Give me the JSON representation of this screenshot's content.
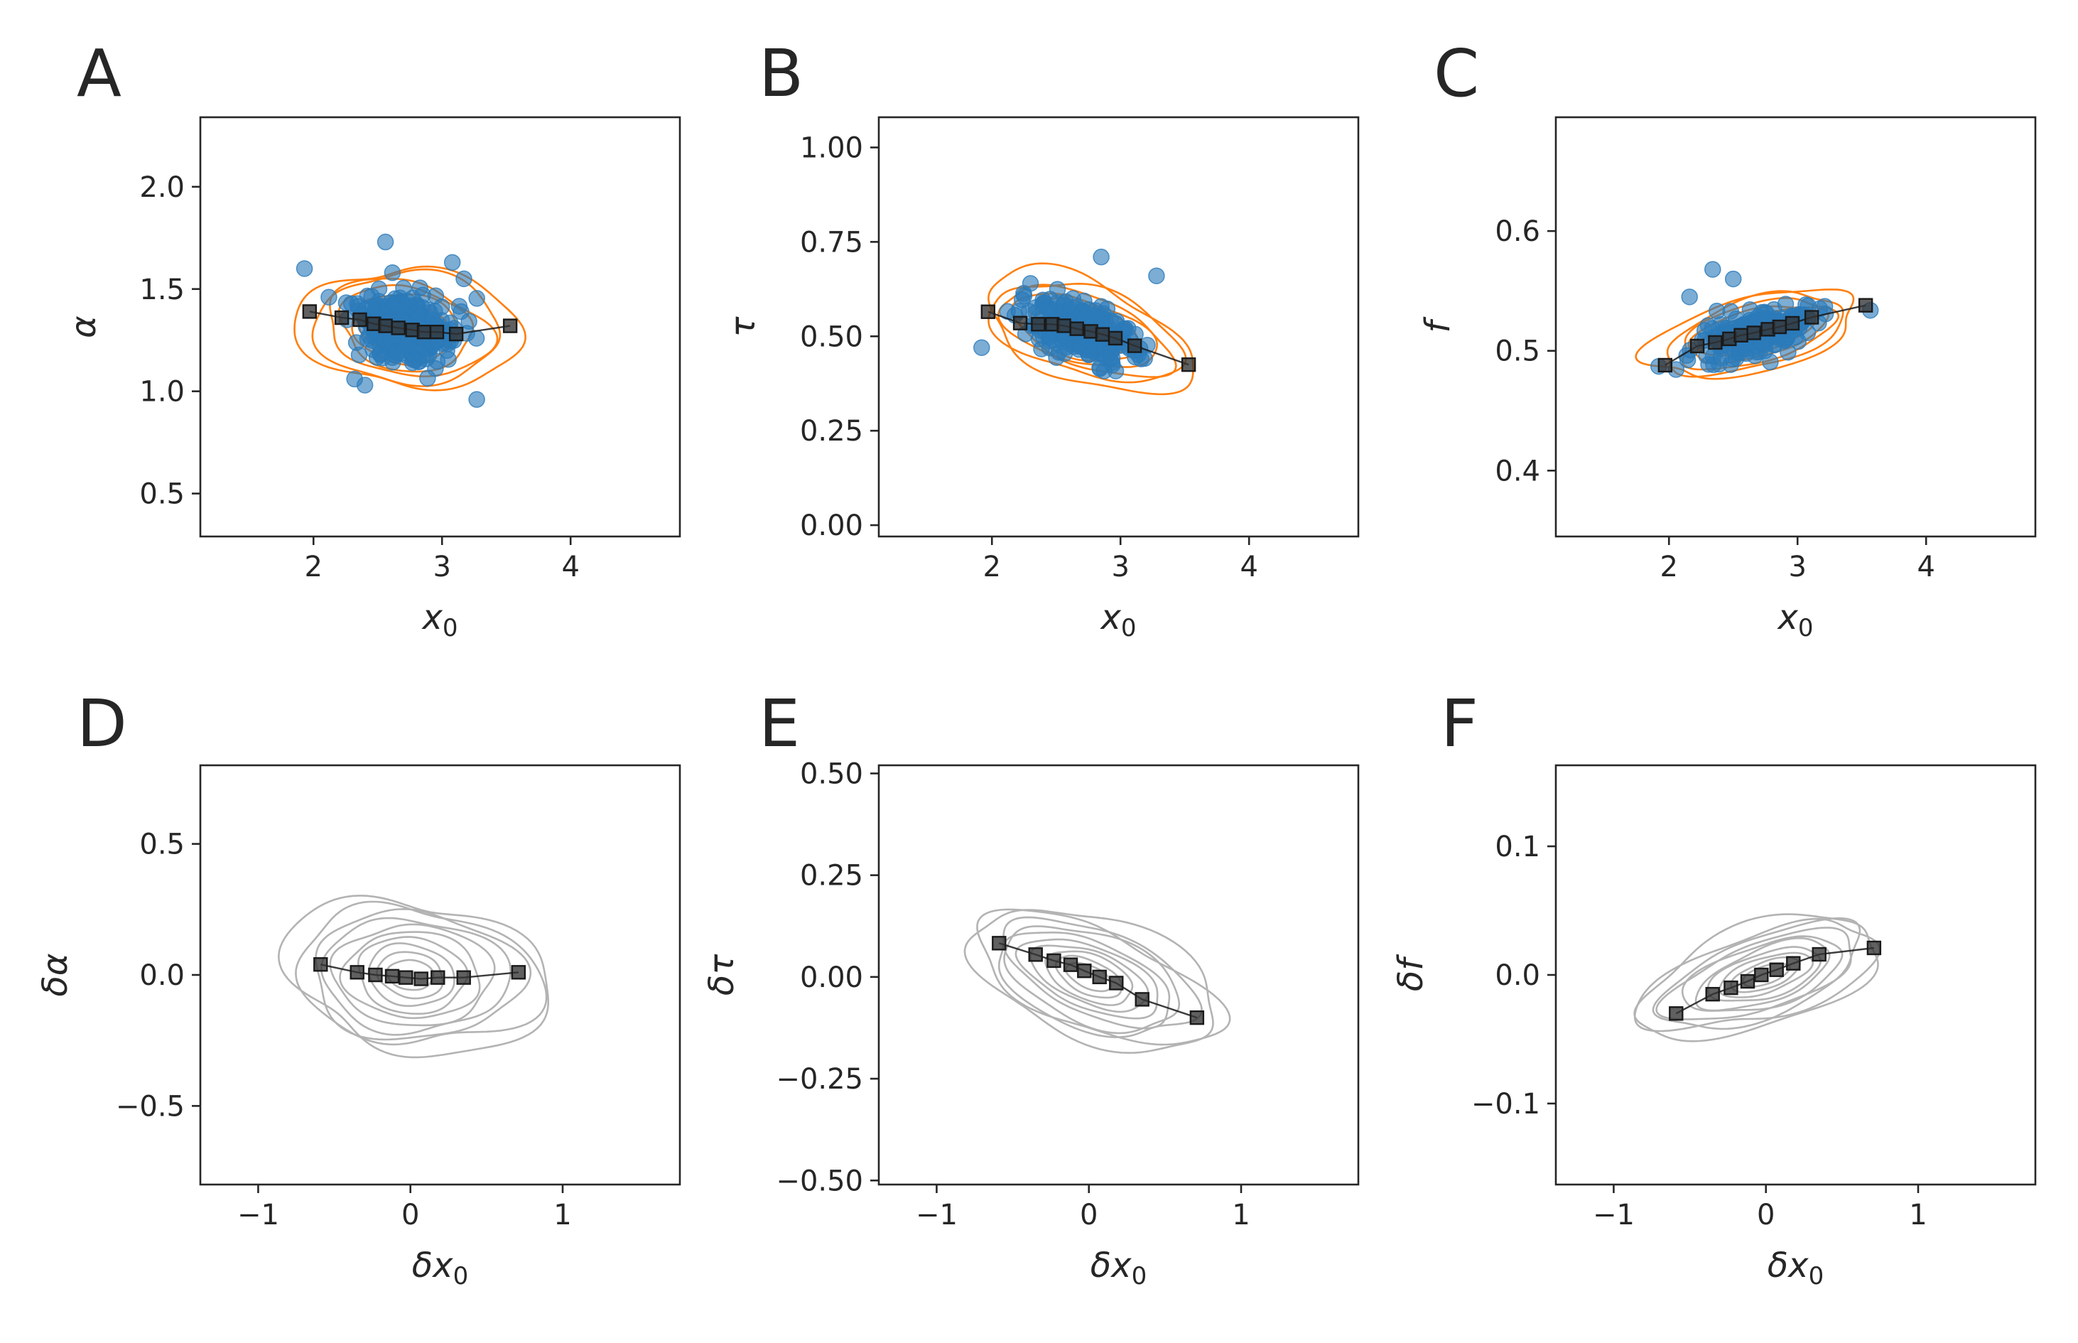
{
  "colors": {
    "scatter": "#2b7bba",
    "contour_top": "#ff7f0e",
    "contour_bottom": "#b3b3b3",
    "binned": "#1a1a1a",
    "text": "#262626"
  },
  "chart_data": [
    {
      "id": "A",
      "type": "scatter",
      "panel_label": "A",
      "xlabel": "x",
      "xlabel_sub": "0",
      "xlabel_prefix": "",
      "ylabel": "α",
      "xlim": [
        1.12,
        4.85
      ],
      "ylim": [
        0.29,
        2.34
      ],
      "xticks": [
        2,
        3,
        4
      ],
      "xtick_labels": [
        "2",
        "3",
        "4"
      ],
      "yticks": [
        0.5,
        1.0,
        1.5,
        2.0
      ],
      "ytick_labels": [
        "0.5",
        "1.0",
        "1.5",
        "2.0"
      ],
      "center": [
        2.7,
        1.31
      ],
      "spread": [
        0.33,
        0.13
      ],
      "rho": -0.12,
      "contour_color": "orange",
      "contours": 8,
      "show_points": true,
      "binned": {
        "x": [
          1.97,
          2.22,
          2.36,
          2.47,
          2.56,
          2.66,
          2.77,
          2.86,
          2.96,
          3.11,
          3.53
        ],
        "y": [
          1.39,
          1.36,
          1.35,
          1.33,
          1.32,
          1.31,
          1.3,
          1.29,
          1.29,
          1.28,
          1.32
        ]
      },
      "outliers": {
        "x": [
          1.93,
          2.56,
          3.08,
          3.27,
          2.32,
          2.4,
          3.17,
          2.12
        ],
        "y": [
          1.6,
          1.73,
          1.63,
          0.96,
          1.06,
          1.03,
          1.55,
          1.46
        ]
      }
    },
    {
      "id": "B",
      "type": "scatter",
      "panel_label": "B",
      "xlabel": "x",
      "xlabel_sub": "0",
      "xlabel_prefix": "",
      "ylabel": "τ",
      "xlim": [
        1.12,
        4.85
      ],
      "ylim": [
        -0.03,
        1.08
      ],
      "xticks": [
        2,
        3,
        4
      ],
      "xtick_labels": [
        "2",
        "3",
        "4"
      ],
      "yticks": [
        0.0,
        0.25,
        0.5,
        0.75,
        1.0
      ],
      "ytick_labels": [
        "0.00",
        "0.25",
        "0.50",
        "0.75",
        "1.00"
      ],
      "center": [
        2.7,
        0.515
      ],
      "spread": [
        0.33,
        0.065
      ],
      "rho": -0.45,
      "contour_color": "orange",
      "contours": 8,
      "show_points": true,
      "binned": {
        "x": [
          1.97,
          2.22,
          2.36,
          2.47,
          2.56,
          2.66,
          2.77,
          2.86,
          2.96,
          3.11,
          3.53
        ],
        "y": [
          0.565,
          0.535,
          0.532,
          0.532,
          0.528,
          0.52,
          0.513,
          0.505,
          0.495,
          0.475,
          0.425
        ]
      },
      "outliers": {
        "x": [
          1.92,
          2.85,
          3.28,
          3.16,
          2.3,
          2.63
        ],
        "y": [
          0.47,
          0.71,
          0.66,
          0.44,
          0.64,
          0.6
        ]
      }
    },
    {
      "id": "C",
      "type": "scatter",
      "panel_label": "C",
      "xlabel": "x",
      "xlabel_sub": "0",
      "xlabel_prefix": "",
      "ylabel": "f",
      "xlim": [
        1.12,
        4.85
      ],
      "ylim": [
        0.345,
        0.695
      ],
      "xticks": [
        2,
        3,
        4
      ],
      "xtick_labels": [
        "2",
        "3",
        "4"
      ],
      "yticks": [
        0.4,
        0.5,
        0.6
      ],
      "ytick_labels": [
        "0.4",
        "0.5",
        "0.6"
      ],
      "center": [
        2.7,
        0.515
      ],
      "spread": [
        0.33,
        0.016
      ],
      "rho": 0.55,
      "contour_color": "orange",
      "contours": 8,
      "show_points": true,
      "binned": {
        "x": [
          1.97,
          2.22,
          2.36,
          2.47,
          2.56,
          2.66,
          2.77,
          2.86,
          2.96,
          3.11,
          3.53
        ],
        "y": [
          0.488,
          0.504,
          0.507,
          0.51,
          0.513,
          0.515,
          0.518,
          0.52,
          0.523,
          0.528,
          0.538
        ]
      },
      "outliers": {
        "x": [
          1.92,
          2.34,
          2.5,
          2.16
        ],
        "y": [
          0.487,
          0.568,
          0.56,
          0.545
        ]
      }
    },
    {
      "id": "D",
      "type": "scatter",
      "panel_label": "D",
      "xlabel": "x",
      "xlabel_sub": "0",
      "xlabel_prefix": "δ",
      "ylabel": "δα",
      "xlim": [
        -1.38,
        1.77
      ],
      "ylim": [
        -0.8,
        0.8
      ],
      "xticks": [
        -1,
        0,
        1
      ],
      "xtick_labels": [
        "−1",
        "0",
        "1"
      ],
      "yticks": [
        -0.5,
        0.0,
        0.5
      ],
      "ytick_labels": [
        "−0.5",
        "0.0",
        "0.5"
      ],
      "center": [
        0.0,
        0.0
      ],
      "spread": [
        0.33,
        0.13
      ],
      "rho": -0.12,
      "contour_color": "gray",
      "contours": 10,
      "show_points": false,
      "binned": {
        "x": [
          -0.59,
          -0.35,
          -0.23,
          -0.12,
          -0.03,
          0.07,
          0.18,
          0.35,
          0.71
        ],
        "y": [
          0.04,
          0.01,
          0.0,
          -0.005,
          -0.01,
          -0.015,
          -0.01,
          -0.01,
          0.01
        ]
      },
      "outliers": {
        "x": [],
        "y": []
      }
    },
    {
      "id": "E",
      "type": "scatter",
      "panel_label": "E",
      "xlabel": "x",
      "xlabel_sub": "0",
      "xlabel_prefix": "δ",
      "ylabel": "δτ",
      "xlim": [
        -1.38,
        1.77
      ],
      "ylim": [
        -0.51,
        0.52
      ],
      "xticks": [
        -1,
        0,
        1
      ],
      "xtick_labels": [
        "−1",
        "0",
        "1"
      ],
      "yticks": [
        -0.5,
        -0.25,
        0.0,
        0.25,
        0.5
      ],
      "ytick_labels": [
        "−0.50",
        "−0.25",
        "0.00",
        "0.25",
        "0.50"
      ],
      "center": [
        0.0,
        0.0
      ],
      "spread": [
        0.33,
        0.075
      ],
      "rho": -0.5,
      "contour_color": "gray",
      "contours": 10,
      "show_points": false,
      "binned": {
        "x": [
          -0.59,
          -0.35,
          -0.23,
          -0.12,
          -0.03,
          0.07,
          0.18,
          0.35,
          0.71
        ],
        "y": [
          0.083,
          0.055,
          0.04,
          0.03,
          0.015,
          0.0,
          -0.015,
          -0.055,
          -0.1
        ]
      },
      "outliers": {
        "x": [],
        "y": []
      }
    },
    {
      "id": "F",
      "type": "scatter",
      "panel_label": "F",
      "xlabel": "x",
      "xlabel_sub": "0",
      "xlabel_prefix": "δ",
      "ylabel": "δf",
      "xlim": [
        -1.38,
        1.77
      ],
      "ylim": [
        -0.163,
        0.163
      ],
      "xticks": [
        -1,
        0,
        1
      ],
      "xtick_labels": [
        "−1",
        "0",
        "1"
      ],
      "yticks": [
        -0.1,
        0.0,
        0.1
      ],
      "ytick_labels": [
        "−0.1",
        "0.0",
        "0.1"
      ],
      "center": [
        0.0,
        0.0
      ],
      "spread": [
        0.33,
        0.02
      ],
      "rho": 0.55,
      "contour_color": "gray",
      "contours": 10,
      "show_points": false,
      "binned": {
        "x": [
          -0.59,
          -0.35,
          -0.23,
          -0.12,
          -0.03,
          0.07,
          0.18,
          0.35,
          0.71
        ],
        "y": [
          -0.03,
          -0.015,
          -0.01,
          -0.005,
          0.0,
          0.004,
          0.009,
          0.016,
          0.021
        ]
      },
      "outliers": {
        "x": [],
        "y": []
      }
    }
  ]
}
